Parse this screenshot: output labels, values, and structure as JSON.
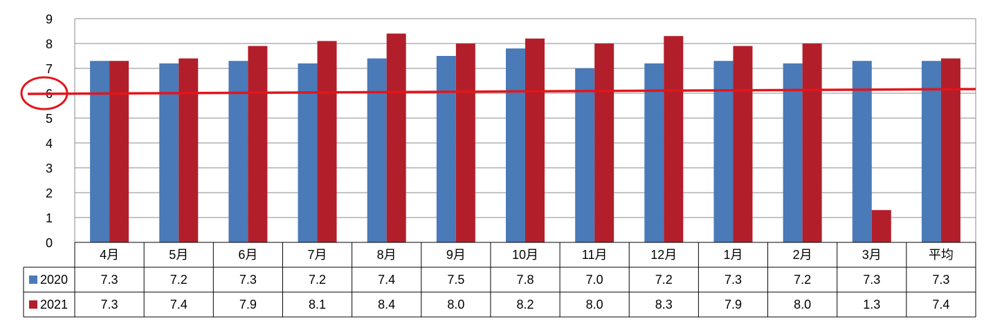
{
  "chart_data": {
    "type": "bar",
    "title": "",
    "xlabel": "",
    "ylabel": "",
    "categories": [
      "4月",
      "5月",
      "6月",
      "7月",
      "8月",
      "9月",
      "10月",
      "11月",
      "12月",
      "1月",
      "2月",
      "3月",
      "平均"
    ],
    "series": [
      {
        "name": "2020",
        "color": "#4A7AB7",
        "values": [
          7.3,
          7.2,
          7.3,
          7.2,
          7.4,
          7.5,
          7.8,
          7.0,
          7.2,
          7.3,
          7.2,
          7.3,
          7.3
        ]
      },
      {
        "name": "2021",
        "color": "#B21F2A",
        "values": [
          7.3,
          7.4,
          7.9,
          8.1,
          8.4,
          8.0,
          8.2,
          8.0,
          8.3,
          7.9,
          8.0,
          1.3,
          7.4
        ]
      }
    ],
    "table_values": {
      "2020": [
        "7.3",
        "7.2",
        "7.3",
        "7.2",
        "7.4",
        "7.5",
        "7.8",
        "7.0",
        "7.2",
        "7.3",
        "7.2",
        "7.3",
        "7.3"
      ],
      "2021": [
        "7.3",
        "7.4",
        "7.9",
        "8.1",
        "8.4",
        "8.0",
        "8.2",
        "8.0",
        "8.3",
        "7.9",
        "8.0",
        "1.3",
        "7.4"
      ]
    },
    "ylim": [
      0,
      9
    ],
    "yticks": [
      0,
      1,
      2,
      3,
      4,
      5,
      6,
      7,
      8,
      9
    ],
    "grid": true,
    "legend": "data-table-left",
    "annotations": [
      {
        "type": "reference-line",
        "value": 6,
        "color": "#E3151B"
      },
      {
        "type": "circle-highlight",
        "target": "y-tick 6",
        "color": "#E3151B"
      }
    ]
  }
}
